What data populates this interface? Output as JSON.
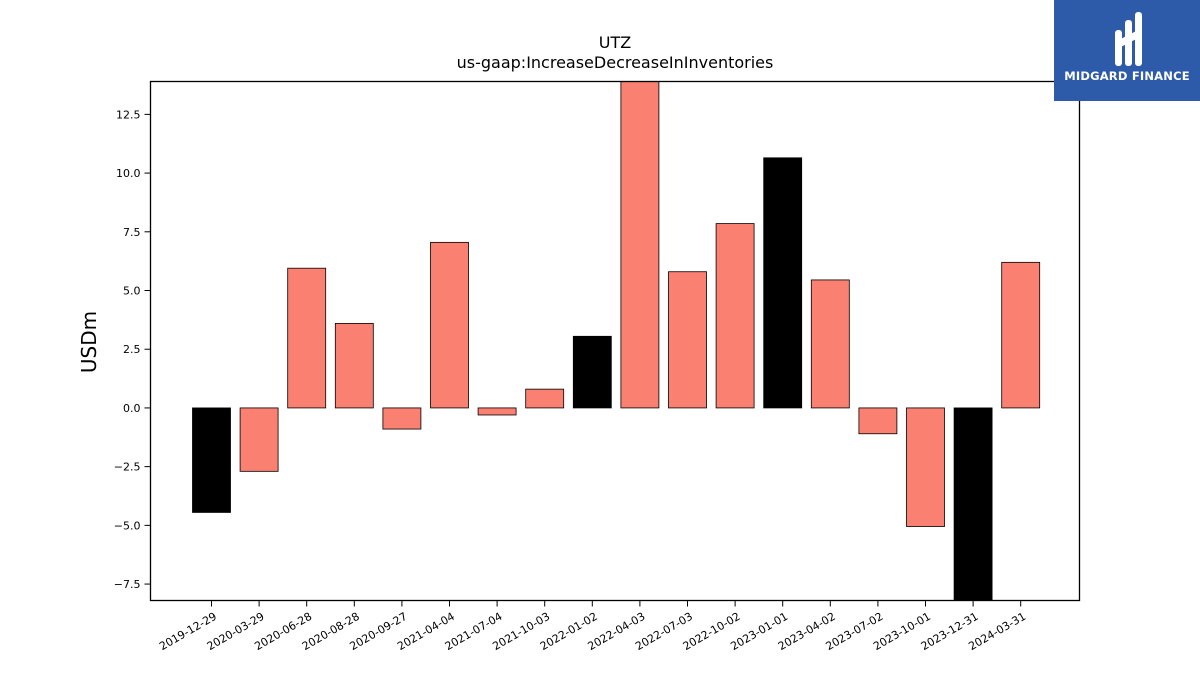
{
  "logo": {
    "text": "MIDGARD FINANCE",
    "color": "#2d5baa"
  },
  "chart_data": {
    "type": "bar",
    "title": "UTZ",
    "subtitle": "us-gaap:IncreaseDecreaseInInventories",
    "xlabel": "",
    "ylabel": "USDm",
    "ylim": [
      -8.2,
      13.9
    ],
    "yticks": [
      -7.5,
      -5.0,
      -2.5,
      0.0,
      2.5,
      5.0,
      7.5,
      10.0,
      12.5
    ],
    "ytick_labels": [
      "−7.5",
      "−5.0",
      "−2.5",
      "0.0",
      "2.5",
      "5.0",
      "7.5",
      "10.0",
      "12.5"
    ],
    "grid": false,
    "categories": [
      "2019-12-29",
      "2020-03-29",
      "2020-06-28",
      "2020-08-28",
      "2020-09-27",
      "2021-04-04",
      "2021-07-04",
      "2021-10-03",
      "2022-01-02",
      "2022-04-03",
      "2022-07-03",
      "2022-10-02",
      "2023-01-01",
      "2023-04-02",
      "2023-07-02",
      "2023-10-01",
      "2023-12-31",
      "2024-03-31"
    ],
    "values": [
      -4.45,
      -2.7,
      5.95,
      3.6,
      -0.9,
      7.05,
      -0.3,
      0.8,
      3.05,
      13.9,
      5.8,
      7.85,
      10.65,
      5.45,
      -1.1,
      -5.05,
      -8.2,
      6.2
    ],
    "colors": [
      "#000000",
      "#fa8072",
      "#fa8072",
      "#fa8072",
      "#fa8072",
      "#fa8072",
      "#fa8072",
      "#fa8072",
      "#000000",
      "#fa8072",
      "#fa8072",
      "#fa8072",
      "#000000",
      "#fa8072",
      "#fa8072",
      "#fa8072",
      "#000000",
      "#fa8072"
    ]
  }
}
